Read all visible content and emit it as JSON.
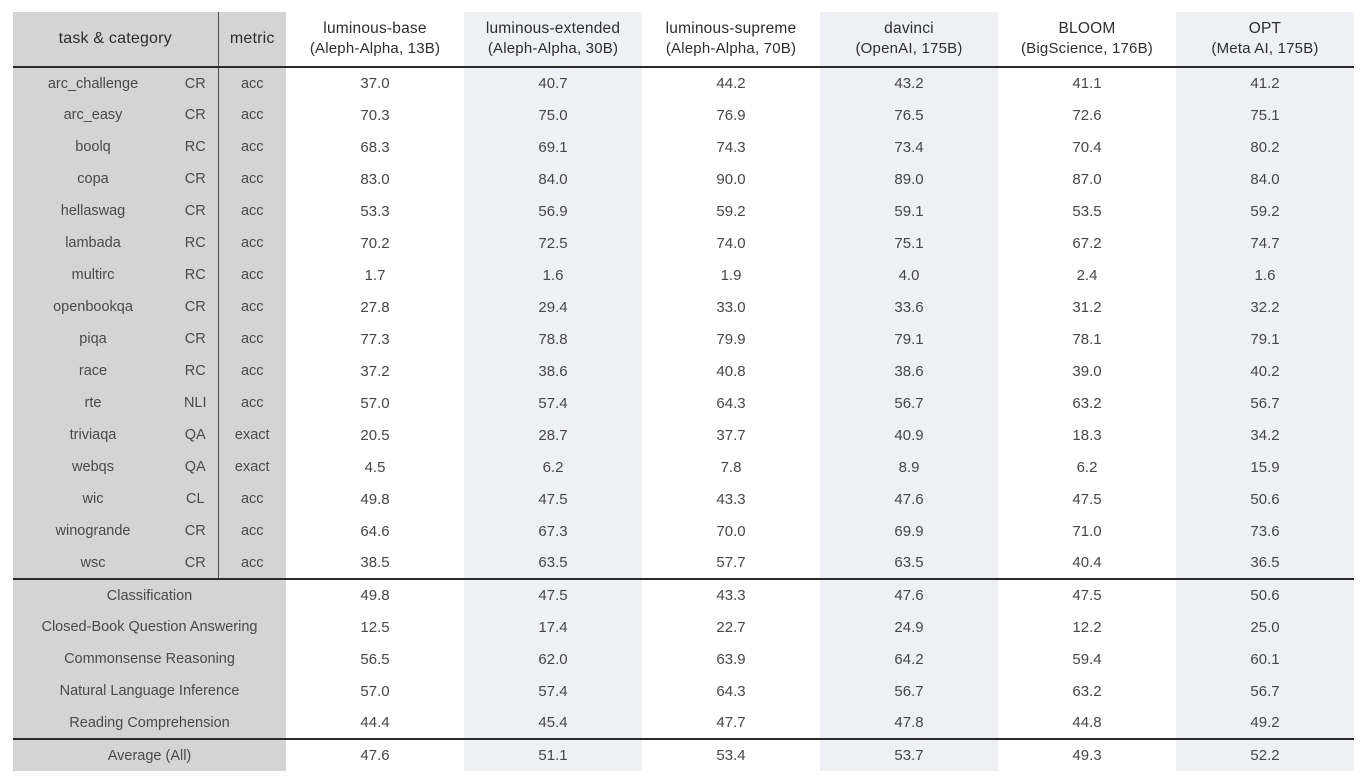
{
  "chart_data": {
    "type": "table",
    "title": "",
    "header": {
      "task_category": "task & category",
      "metric": "metric",
      "models": [
        {
          "name": "luminous-base",
          "org": "(Aleph-Alpha, 13B)"
        },
        {
          "name": "luminous-extended",
          "org": "(Aleph-Alpha, 30B)"
        },
        {
          "name": "luminous-supreme",
          "org": "(Aleph-Alpha, 70B)"
        },
        {
          "name": "davinci",
          "org": "(OpenAI, 175B)"
        },
        {
          "name": "BLOOM",
          "org": "(BigScience, 176B)"
        },
        {
          "name": "OPT",
          "org": "(Meta AI, 175B)"
        }
      ]
    },
    "rows": [
      {
        "task": "arc_challenge",
        "category": "CR",
        "metric": "acc",
        "values": [
          "37.0",
          "40.7",
          "44.2",
          "43.2",
          "41.1",
          "41.2"
        ]
      },
      {
        "task": "arc_easy",
        "category": "CR",
        "metric": "acc",
        "values": [
          "70.3",
          "75.0",
          "76.9",
          "76.5",
          "72.6",
          "75.1"
        ]
      },
      {
        "task": "boolq",
        "category": "RC",
        "metric": "acc",
        "values": [
          "68.3",
          "69.1",
          "74.3",
          "73.4",
          "70.4",
          "80.2"
        ]
      },
      {
        "task": "copa",
        "category": "CR",
        "metric": "acc",
        "values": [
          "83.0",
          "84.0",
          "90.0",
          "89.0",
          "87.0",
          "84.0"
        ]
      },
      {
        "task": "hellaswag",
        "category": "CR",
        "metric": "acc",
        "values": [
          "53.3",
          "56.9",
          "59.2",
          "59.1",
          "53.5",
          "59.2"
        ]
      },
      {
        "task": "lambada",
        "category": "RC",
        "metric": "acc",
        "values": [
          "70.2",
          "72.5",
          "74.0",
          "75.1",
          "67.2",
          "74.7"
        ]
      },
      {
        "task": "multirc",
        "category": "RC",
        "metric": "acc",
        "values": [
          "1.7",
          "1.6",
          "1.9",
          "4.0",
          "2.4",
          "1.6"
        ]
      },
      {
        "task": "openbookqa",
        "category": "CR",
        "metric": "acc",
        "values": [
          "27.8",
          "29.4",
          "33.0",
          "33.6",
          "31.2",
          "32.2"
        ]
      },
      {
        "task": "piqa",
        "category": "CR",
        "metric": "acc",
        "values": [
          "77.3",
          "78.8",
          "79.9",
          "79.1",
          "78.1",
          "79.1"
        ]
      },
      {
        "task": "race",
        "category": "RC",
        "metric": "acc",
        "values": [
          "37.2",
          "38.6",
          "40.8",
          "38.6",
          "39.0",
          "40.2"
        ]
      },
      {
        "task": "rte",
        "category": "NLI",
        "metric": "acc",
        "values": [
          "57.0",
          "57.4",
          "64.3",
          "56.7",
          "63.2",
          "56.7"
        ]
      },
      {
        "task": "triviaqa",
        "category": "QA",
        "metric": "exact",
        "values": [
          "20.5",
          "28.7",
          "37.7",
          "40.9",
          "18.3",
          "34.2"
        ]
      },
      {
        "task": "webqs",
        "category": "QA",
        "metric": "exact",
        "values": [
          "4.5",
          "6.2",
          "7.8",
          "8.9",
          "6.2",
          "15.9"
        ]
      },
      {
        "task": "wic",
        "category": "CL",
        "metric": "acc",
        "values": [
          "49.8",
          "47.5",
          "43.3",
          "47.6",
          "47.5",
          "50.6"
        ]
      },
      {
        "task": "winogrande",
        "category": "CR",
        "metric": "acc",
        "values": [
          "64.6",
          "67.3",
          "70.0",
          "69.9",
          "71.0",
          "73.6"
        ]
      },
      {
        "task": "wsc",
        "category": "CR",
        "metric": "acc",
        "values": [
          "38.5",
          "63.5",
          "57.7",
          "63.5",
          "40.4",
          "36.5"
        ]
      }
    ],
    "category_averages": [
      {
        "label": "Classification",
        "values": [
          "49.8",
          "47.5",
          "43.3",
          "47.6",
          "47.5",
          "50.6"
        ]
      },
      {
        "label": "Closed-Book Question Answering",
        "values": [
          "12.5",
          "17.4",
          "22.7",
          "24.9",
          "12.2",
          "25.0"
        ]
      },
      {
        "label": "Commonsense Reasoning",
        "values": [
          "56.5",
          "62.0",
          "63.9",
          "64.2",
          "59.4",
          "60.1"
        ]
      },
      {
        "label": "Natural Language Inference",
        "values": [
          "57.0",
          "57.4",
          "64.3",
          "56.7",
          "63.2",
          "56.7"
        ]
      },
      {
        "label": "Reading Comprehension",
        "values": [
          "44.4",
          "45.4",
          "47.7",
          "47.8",
          "44.8",
          "49.2"
        ]
      }
    ],
    "overall": {
      "label": "Average (All)",
      "values": [
        "47.6",
        "51.1",
        "53.4",
        "53.7",
        "49.3",
        "52.2"
      ]
    }
  },
  "colors": {
    "left_block_bg": "#d4d4d4",
    "shaded_column_bg": "#eef0f4",
    "rule_dark": "#2b2b2b",
    "divider": "#4f4f4f",
    "text": "#464646",
    "page_bg": "#ffffff"
  }
}
